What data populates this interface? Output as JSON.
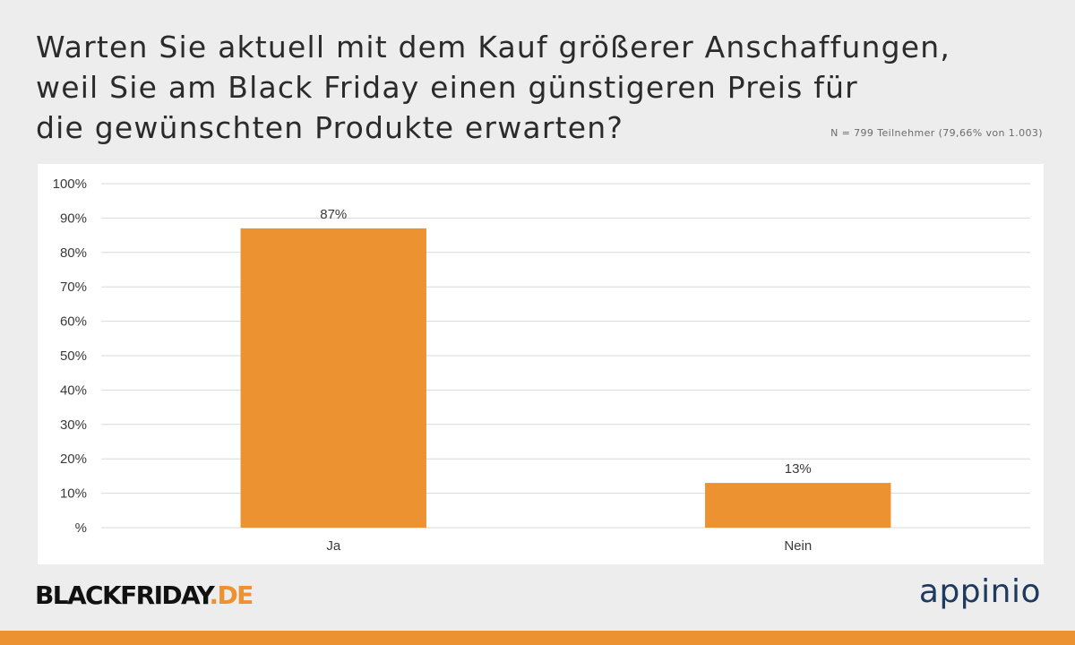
{
  "header": {
    "title_lines": [
      "Warten Sie aktuell mit dem Kauf größerer Anschaffungen,",
      "weil Sie am Black Friday einen günstigeren Preis für",
      "die gewünschten Produkte erwarten?"
    ],
    "sample_note": "N = 799 Teilnehmer (79,66% von 1.003)"
  },
  "branding": {
    "left_logo_main": "BLACKFRIDAY",
    "left_logo_accent": ".DE",
    "right_logo": "appinio",
    "accent_color": "#ec9230",
    "right_logo_color": "#1f3a5f"
  },
  "chart_data": {
    "type": "bar",
    "categories": [
      "Ja",
      "Nein"
    ],
    "values": [
      87,
      13
    ],
    "value_labels": [
      "87%",
      "13%"
    ],
    "ylim": [
      0,
      100
    ],
    "yticks": [
      0,
      10,
      20,
      30,
      40,
      50,
      60,
      70,
      80,
      90,
      100
    ],
    "ytick_labels": [
      "%",
      "10%",
      "20%",
      "30%",
      "40%",
      "50%",
      "60%",
      "70%",
      "80%",
      "90%",
      "100%"
    ],
    "grid": true,
    "bar_color": "#ec9230",
    "title": "",
    "xlabel": "",
    "ylabel": ""
  }
}
